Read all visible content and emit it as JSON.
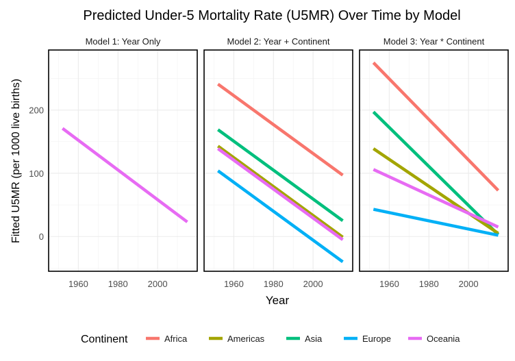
{
  "chart_data": {
    "type": "line",
    "title": "Predicted Under-5 Mortality Rate (U5MR) Over Time by Model",
    "xlabel": "Year",
    "ylabel": "Fitted U5MR (per 1000 live births)",
    "xlim": [
      1945,
      2020
    ],
    "ylim": [
      -55,
      295
    ],
    "x_ticks": [
      1960,
      1980,
      2000
    ],
    "y_ticks": [
      0,
      100,
      200
    ],
    "grid": true,
    "legend": {
      "title": "Continent",
      "position": "bottom",
      "entries": [
        "Africa",
        "Americas",
        "Asia",
        "Europe",
        "Oceania"
      ]
    },
    "colors": {
      "Africa": "#F8766D",
      "Americas": "#A3A500",
      "Asia": "#00BF7D",
      "Europe": "#00B0F6",
      "Oceania": "#E76BF3"
    },
    "panels": [
      {
        "title": "Model 1: Year Only",
        "series": [
          {
            "color": "#E76BF3",
            "x": [
              1952,
              2015
            ],
            "y": [
              171,
              23
            ]
          }
        ]
      },
      {
        "title": "Model 2: Year + Continent",
        "series": [
          {
            "name": "Africa",
            "x": [
              1952,
              2015
            ],
            "y": [
              241,
              97
            ]
          },
          {
            "name": "Asia",
            "x": [
              1952,
              2015
            ],
            "y": [
              169,
              25
            ]
          },
          {
            "name": "Americas",
            "x": [
              1952,
              2015
            ],
            "y": [
              143,
              -1
            ]
          },
          {
            "name": "Oceania",
            "x": [
              1952,
              2015
            ],
            "y": [
              139,
              -5
            ]
          },
          {
            "name": "Europe",
            "x": [
              1952,
              2015
            ],
            "y": [
              104,
              -40
            ]
          }
        ]
      },
      {
        "title": "Model 3: Year * Continent",
        "series": [
          {
            "name": "Africa",
            "x": [
              1952,
              2015
            ],
            "y": [
              275,
              73
            ]
          },
          {
            "name": "Asia",
            "x": [
              1952,
              2015
            ],
            "y": [
              197,
              3
            ]
          },
          {
            "name": "Americas",
            "x": [
              1952,
              2015
            ],
            "y": [
              139,
              5
            ]
          },
          {
            "name": "Oceania",
            "x": [
              1952,
              2015
            ],
            "y": [
              106,
              15
            ]
          },
          {
            "name": "Europe",
            "x": [
              1952,
              2015
            ],
            "y": [
              43,
              2
            ]
          }
        ]
      }
    ]
  }
}
